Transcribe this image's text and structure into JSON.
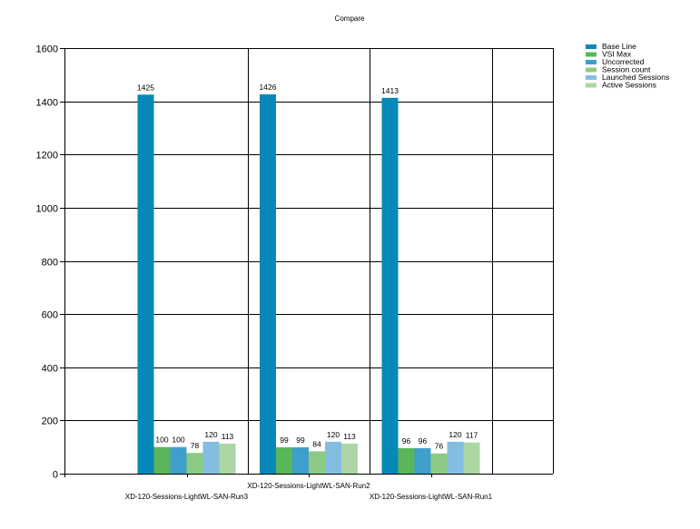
{
  "chart_data": {
    "type": "bar",
    "title": "Compare",
    "xlabel": "",
    "ylabel": "",
    "ylim": [
      0,
      1600
    ],
    "yticks": [
      0,
      200,
      400,
      600,
      800,
      1000,
      1200,
      1400,
      1600
    ],
    "grid": true,
    "legend_position": "top-right",
    "categories": [
      "XD-120-Sessions-LightWL-SAN-Run3",
      "XD-120-Sessions-LightWL-SAN-Run2",
      "XD-120-Sessions-LightWL-SAN-Run1"
    ],
    "series": [
      {
        "name": "Base Line",
        "color": "#0689b8",
        "values": [
          1425,
          1426,
          1413
        ]
      },
      {
        "name": "VSI Max",
        "color": "#5bb55b",
        "values": [
          100,
          99,
          96
        ]
      },
      {
        "name": "Uncorrected",
        "color": "#3e9fcd",
        "values": [
          100,
          99,
          96
        ]
      },
      {
        "name": "Session count",
        "color": "#8ccb84",
        "values": [
          78,
          84,
          76
        ]
      },
      {
        "name": "Launched Sessions",
        "color": "#84bde0",
        "values": [
          120,
          120,
          120
        ]
      },
      {
        "name": "Active Sessions",
        "color": "#acd6a4",
        "values": [
          113,
          113,
          117
        ]
      }
    ]
  }
}
